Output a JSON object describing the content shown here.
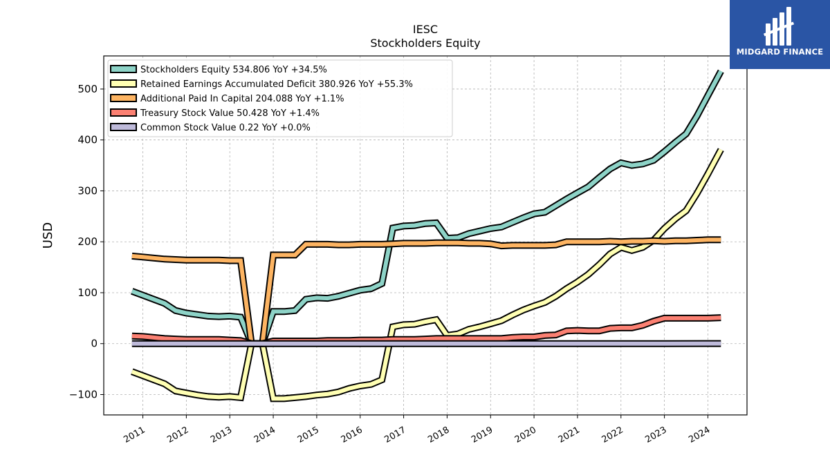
{
  "chart_data": {
    "type": "line",
    "title": "IESC",
    "subtitle": "Stockholders  Equity",
    "ylabel": "USD",
    "xlabel": "",
    "ylim": [
      -140,
      565
    ],
    "xlim": [
      2010.1,
      2024.9
    ],
    "yticks": [
      -100,
      0,
      100,
      200,
      300,
      400,
      500
    ],
    "ytick_labels": [
      "−100",
      "0",
      "100",
      "200",
      "300",
      "400",
      "500"
    ],
    "xticks": [
      2011,
      2012,
      2013,
      2014,
      2015,
      2016,
      2017,
      2018,
      2019,
      2020,
      2021,
      2022,
      2023,
      2024
    ],
    "xtick_labels": [
      "2011",
      "2012",
      "2013",
      "2014",
      "2015",
      "2016",
      "2017",
      "2018",
      "2019",
      "2020",
      "2021",
      "2022",
      "2023",
      "2024"
    ],
    "grid": true,
    "legend_position": "top-left",
    "series": [
      {
        "name": "Stockholders Equity",
        "legend": "Stockholders Equity  534.806 YoY +34.5%",
        "color": "#8dd3c7",
        "points": [
          [
            2010.75,
            103
          ],
          [
            2011.0,
            95
          ],
          [
            2011.25,
            87
          ],
          [
            2011.5,
            79
          ],
          [
            2011.75,
            65
          ],
          [
            2012.0,
            60
          ],
          [
            2012.25,
            57
          ],
          [
            2012.5,
            54
          ],
          [
            2012.75,
            53
          ],
          [
            2013.0,
            54
          ],
          [
            2013.25,
            52
          ],
          [
            2013.5,
            0
          ],
          [
            2013.75,
            0
          ],
          [
            2014.0,
            63
          ],
          [
            2014.25,
            63
          ],
          [
            2014.5,
            65
          ],
          [
            2014.75,
            87
          ],
          [
            2015.0,
            90
          ],
          [
            2015.25,
            89
          ],
          [
            2015.5,
            93
          ],
          [
            2015.75,
            99
          ],
          [
            2016.0,
            105
          ],
          [
            2016.25,
            108
          ],
          [
            2016.5,
            118
          ],
          [
            2016.75,
            227
          ],
          [
            2017.0,
            231
          ],
          [
            2017.25,
            232
          ],
          [
            2017.5,
            236
          ],
          [
            2017.75,
            237
          ],
          [
            2018.0,
            207
          ],
          [
            2018.25,
            208
          ],
          [
            2018.5,
            216
          ],
          [
            2018.75,
            221
          ],
          [
            2019.0,
            226
          ],
          [
            2019.25,
            229
          ],
          [
            2019.5,
            238
          ],
          [
            2019.75,
            247
          ],
          [
            2020.0,
            255
          ],
          [
            2020.25,
            258
          ],
          [
            2020.5,
            271
          ],
          [
            2020.75,
            284
          ],
          [
            2021.0,
            296
          ],
          [
            2021.25,
            308
          ],
          [
            2021.5,
            326
          ],
          [
            2021.75,
            343
          ],
          [
            2022.0,
            355
          ],
          [
            2022.25,
            350
          ],
          [
            2022.5,
            353
          ],
          [
            2022.75,
            360
          ],
          [
            2023.0,
            377
          ],
          [
            2023.25,
            395
          ],
          [
            2023.5,
            412
          ],
          [
            2023.75,
            447
          ],
          [
            2024.0,
            487
          ],
          [
            2024.3,
            535
          ]
        ]
      },
      {
        "name": "Retained Earnings Accumulated Deficit",
        "legend": "Retained Earnings Accumulated Deficit  380.926 YoY +55.3%",
        "color": "#ffffb3",
        "points": [
          [
            2010.75,
            -55
          ],
          [
            2011.0,
            -63
          ],
          [
            2011.25,
            -71
          ],
          [
            2011.5,
            -79
          ],
          [
            2011.75,
            -93
          ],
          [
            2012.0,
            -97
          ],
          [
            2012.25,
            -101
          ],
          [
            2012.5,
            -104
          ],
          [
            2012.75,
            -105
          ],
          [
            2013.0,
            -104
          ],
          [
            2013.25,
            -106
          ],
          [
            2013.5,
            0
          ],
          [
            2013.75,
            0
          ],
          [
            2014.0,
            -108
          ],
          [
            2014.25,
            -108
          ],
          [
            2014.5,
            -106
          ],
          [
            2014.75,
            -104
          ],
          [
            2015.0,
            -101
          ],
          [
            2015.25,
            -99
          ],
          [
            2015.5,
            -95
          ],
          [
            2015.75,
            -88
          ],
          [
            2016.0,
            -83
          ],
          [
            2016.25,
            -80
          ],
          [
            2016.5,
            -71
          ],
          [
            2016.75,
            33
          ],
          [
            2017.0,
            37
          ],
          [
            2017.25,
            38
          ],
          [
            2017.5,
            43
          ],
          [
            2017.75,
            47
          ],
          [
            2018.0,
            16
          ],
          [
            2018.25,
            19
          ],
          [
            2018.5,
            28
          ],
          [
            2018.75,
            33
          ],
          [
            2019.0,
            39
          ],
          [
            2019.25,
            45
          ],
          [
            2019.5,
            56
          ],
          [
            2019.75,
            66
          ],
          [
            2020.0,
            74
          ],
          [
            2020.25,
            81
          ],
          [
            2020.5,
            93
          ],
          [
            2020.75,
            108
          ],
          [
            2021.0,
            121
          ],
          [
            2021.25,
            136
          ],
          [
            2021.5,
            155
          ],
          [
            2021.75,
            176
          ],
          [
            2022.0,
            189
          ],
          [
            2022.25,
            183
          ],
          [
            2022.5,
            189
          ],
          [
            2022.75,
            203
          ],
          [
            2023.0,
            226
          ],
          [
            2023.25,
            245
          ],
          [
            2023.5,
            261
          ],
          [
            2023.75,
            295
          ],
          [
            2024.0,
            333
          ],
          [
            2024.3,
            381
          ]
        ]
      },
      {
        "name": "Additional Paid In Capital",
        "legend": "Additional Paid In Capital  204.088 YoY +1.1%",
        "color": "#fdb462",
        "points": [
          [
            2010.75,
            172
          ],
          [
            2011.0,
            170
          ],
          [
            2011.25,
            168
          ],
          [
            2011.5,
            166
          ],
          [
            2011.75,
            165
          ],
          [
            2012.0,
            164
          ],
          [
            2012.25,
            164
          ],
          [
            2012.5,
            164
          ],
          [
            2012.75,
            164
          ],
          [
            2013.0,
            163
          ],
          [
            2013.25,
            163
          ],
          [
            2013.5,
            0
          ],
          [
            2013.75,
            0
          ],
          [
            2014.0,
            174
          ],
          [
            2014.25,
            174
          ],
          [
            2014.5,
            174
          ],
          [
            2014.75,
            195
          ],
          [
            2015.0,
            195
          ],
          [
            2015.25,
            195
          ],
          [
            2015.5,
            194
          ],
          [
            2015.75,
            194
          ],
          [
            2016.0,
            195
          ],
          [
            2016.25,
            195
          ],
          [
            2016.5,
            195
          ],
          [
            2016.75,
            196
          ],
          [
            2017.0,
            197
          ],
          [
            2017.25,
            197
          ],
          [
            2017.5,
            197
          ],
          [
            2017.75,
            198
          ],
          [
            2018.0,
            198
          ],
          [
            2018.25,
            198
          ],
          [
            2018.5,
            197
          ],
          [
            2018.75,
            197
          ],
          [
            2019.0,
            196
          ],
          [
            2019.25,
            192
          ],
          [
            2019.5,
            193
          ],
          [
            2019.75,
            193
          ],
          [
            2020.0,
            193
          ],
          [
            2020.25,
            193
          ],
          [
            2020.5,
            194
          ],
          [
            2020.75,
            200
          ],
          [
            2021.0,
            200
          ],
          [
            2021.25,
            200
          ],
          [
            2021.5,
            200
          ],
          [
            2021.75,
            201
          ],
          [
            2022.0,
            200
          ],
          [
            2022.25,
            201
          ],
          [
            2022.5,
            201
          ],
          [
            2022.75,
            202
          ],
          [
            2023.0,
            201
          ],
          [
            2023.25,
            202
          ],
          [
            2023.5,
            202
          ],
          [
            2023.75,
            203
          ],
          [
            2024.0,
            204
          ],
          [
            2024.3,
            204
          ]
        ]
      },
      {
        "name": "Treasury Stock Value",
        "legend": "Treasury Stock Value  50.428 YoY +1.4%",
        "color": "#fb8072",
        "points": [
          [
            2010.75,
            15
          ],
          [
            2011.0,
            14
          ],
          [
            2011.25,
            12
          ],
          [
            2011.5,
            10
          ],
          [
            2011.75,
            9
          ],
          [
            2012.0,
            8
          ],
          [
            2012.25,
            8
          ],
          [
            2012.5,
            8
          ],
          [
            2012.75,
            8
          ],
          [
            2013.0,
            7
          ],
          [
            2013.25,
            6
          ],
          [
            2013.5,
            0
          ],
          [
            2013.75,
            0
          ],
          [
            2014.0,
            5
          ],
          [
            2014.25,
            5
          ],
          [
            2014.5,
            5
          ],
          [
            2014.75,
            5
          ],
          [
            2015.0,
            5
          ],
          [
            2015.25,
            6
          ],
          [
            2015.5,
            6
          ],
          [
            2015.75,
            6
          ],
          [
            2016.0,
            7
          ],
          [
            2016.25,
            7
          ],
          [
            2016.5,
            7
          ],
          [
            2016.75,
            8
          ],
          [
            2017.0,
            8
          ],
          [
            2017.25,
            8
          ],
          [
            2017.5,
            9
          ],
          [
            2017.75,
            10
          ],
          [
            2018.0,
            10
          ],
          [
            2018.25,
            10
          ],
          [
            2018.5,
            10
          ],
          [
            2018.75,
            10
          ],
          [
            2019.0,
            10
          ],
          [
            2019.25,
            10
          ],
          [
            2019.5,
            12
          ],
          [
            2019.75,
            13
          ],
          [
            2020.0,
            13
          ],
          [
            2020.25,
            16
          ],
          [
            2020.5,
            17
          ],
          [
            2020.75,
            25
          ],
          [
            2021.0,
            26
          ],
          [
            2021.25,
            25
          ],
          [
            2021.5,
            25
          ],
          [
            2021.75,
            30
          ],
          [
            2022.0,
            31
          ],
          [
            2022.25,
            31
          ],
          [
            2022.5,
            36
          ],
          [
            2022.75,
            44
          ],
          [
            2023.0,
            50
          ],
          [
            2023.25,
            50
          ],
          [
            2023.5,
            50
          ],
          [
            2023.75,
            50
          ],
          [
            2024.0,
            50
          ],
          [
            2024.3,
            51
          ]
        ]
      },
      {
        "name": "Common Stock Value",
        "legend": "Common Stock Value  0.22 YoY +0.0%",
        "color": "#bebada",
        "points": [
          [
            2010.75,
            0
          ],
          [
            2012.0,
            0
          ],
          [
            2013.0,
            0
          ],
          [
            2014.0,
            0
          ],
          [
            2015.0,
            0
          ],
          [
            2016.0,
            0
          ],
          [
            2017.0,
            0
          ],
          [
            2018.0,
            0
          ],
          [
            2019.0,
            0
          ],
          [
            2020.0,
            0
          ],
          [
            2021.0,
            0
          ],
          [
            2022.0,
            0
          ],
          [
            2023.0,
            0
          ],
          [
            2024.3,
            0.22
          ]
        ]
      }
    ]
  },
  "logo": {
    "text": "MIDGARD FINANCE",
    "background": "#2a55a5"
  }
}
